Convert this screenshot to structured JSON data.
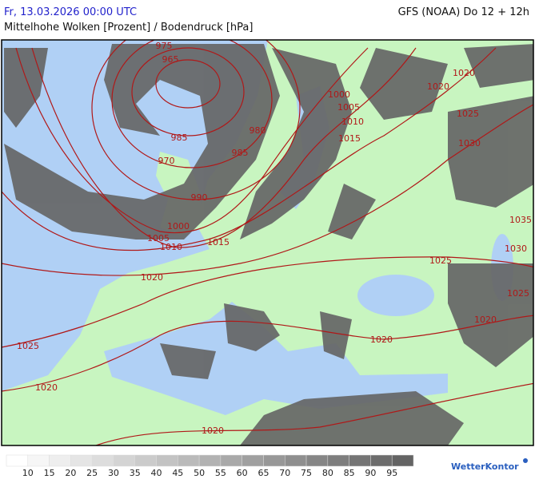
{
  "header": {
    "date": "Fr, 13.03.2026 00:00 UTC",
    "model": "GFS (NOAA) Do 12 + 12h",
    "subtitle": "Mittelhohe Wolken [Prozent] / Bodendruck [hPa]"
  },
  "map": {
    "isobar_labels": [
      975,
      965,
      985,
      970,
      980,
      985,
      990,
      1000,
      1005,
      1010,
      1015,
      1020,
      1000,
      1005,
      1010,
      1015,
      1020,
      1020,
      1025,
      1030,
      1035,
      1030,
      1025,
      1025,
      1020,
      1020,
      1025,
      1020,
      1020
    ]
  },
  "legend": {
    "labels": [
      10,
      15,
      20,
      25,
      30,
      35,
      40,
      45,
      50,
      55,
      60,
      65,
      70,
      75,
      80,
      85,
      90,
      95
    ]
  },
  "logo": {
    "text": "WetterKontor"
  }
}
